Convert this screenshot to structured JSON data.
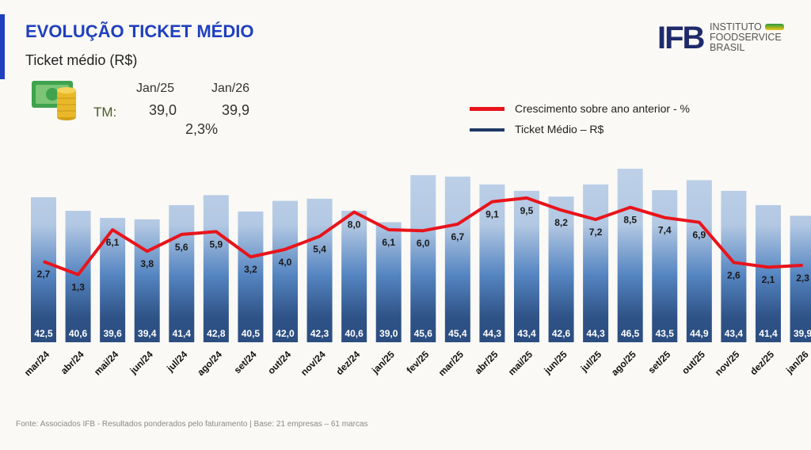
{
  "header": {
    "title": "EVOLUÇÃO TICKET MÉDIO",
    "subtitle": "Ticket médio (R$)"
  },
  "logo": {
    "mark": "IFB",
    "line1": "INSTITUTO",
    "line2": "FOODSERVICE",
    "line3": "BRASIL"
  },
  "summary": {
    "label": "TM:",
    "col1_header": "Jan/25",
    "col2_header": "Jan/26",
    "col1_value": "39,0",
    "col2_value": "39,9",
    "growth": "2,3%",
    "icon": "money-coins-icon"
  },
  "footer": "Fonte: Associados IFB - Resultados ponderados pelo faturamento | Base: 21 empresas – 61 marcas",
  "chart_data": {
    "type": "bar+line",
    "categories": [
      "mar/24",
      "abr/24",
      "mai/24",
      "jun/24",
      "jul/24",
      "ago/24",
      "set/24",
      "out/24",
      "nov/24",
      "dez/24",
      "jan/25",
      "fev/25",
      "mar/25",
      "abr/25",
      "mai/25",
      "jun/25",
      "jul/25",
      "ago/25",
      "set/25",
      "out/25",
      "nov/25",
      "dez/25",
      "jan/26"
    ],
    "series": [
      {
        "name": "Ticket Médio – R$",
        "type": "bar",
        "color": "#1f3864",
        "values": [
          42.5,
          40.6,
          39.6,
          39.4,
          41.4,
          42.8,
          40.5,
          42.0,
          42.3,
          40.6,
          39.0,
          45.6,
          45.4,
          44.3,
          43.4,
          42.6,
          44.3,
          46.5,
          43.5,
          44.9,
          43.4,
          41.4,
          39.9
        ]
      },
      {
        "name": "Crescimento sobre ano anterior - %",
        "type": "line",
        "color": "#e8141b",
        "values": [
          2.7,
          1.3,
          6.1,
          3.8,
          5.6,
          5.9,
          3.2,
          4.0,
          5.4,
          8.0,
          6.1,
          6.0,
          6.7,
          9.1,
          9.5,
          8.2,
          7.2,
          8.5,
          7.4,
          6.9,
          2.6,
          2.1,
          2.3
        ]
      }
    ],
    "legend": "top-right",
    "grid": false
  }
}
